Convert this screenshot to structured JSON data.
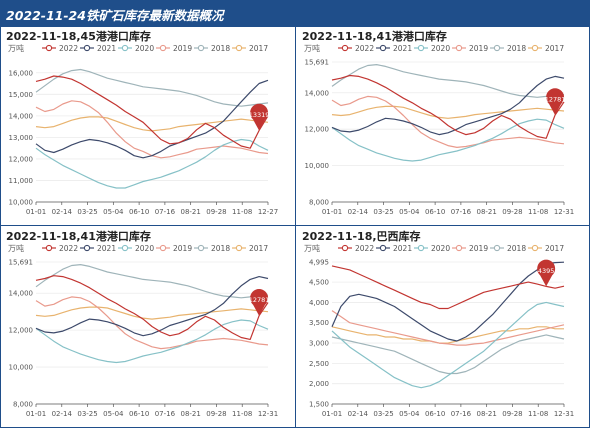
{
  "banner": {
    "title": "2022-11-24铁矿石库存最新数据概况"
  },
  "colors": {
    "2022": "#c23531",
    "2021": "#3d4a6b",
    "2020": "#86c1c7",
    "2019": "#e99a8c",
    "2018": "#9fb4b9",
    "2017": "#e8b36e",
    "banner": "#1f4e8a"
  },
  "chart_data": [
    {
      "type": "line",
      "title": "2022-11-18,45港港口库存",
      "ylabel": "万吨",
      "ylim": [
        10000,
        16500
      ],
      "yticks": [
        "10,000",
        "11,000",
        "12,000",
        "13,000",
        "14,000",
        "15,000",
        "16,000"
      ],
      "xticks": [
        "01-01",
        "02-14",
        "03-25",
        "05-04",
        "06-10",
        "07-16",
        "08-21",
        "09-28",
        "11-08",
        "12-27"
      ],
      "legend": [
        "2022",
        "2021",
        "2020",
        "2019",
        "2018",
        "2017"
      ],
      "grid": true,
      "marker": {
        "label": "13319",
        "x_index": 25,
        "series": "2022"
      },
      "series": [
        {
          "name": "2022",
          "values": [
            15600,
            15700,
            15850,
            15800,
            15700,
            15500,
            15250,
            15000,
            14750,
            14500,
            14200,
            13950,
            13700,
            13300,
            12900,
            12700,
            12750,
            12950,
            13350,
            13650,
            13450,
            13100,
            12850,
            12600,
            12500,
            13319,
            14000
          ]
        },
        {
          "name": "2021",
          "values": [
            12700,
            12400,
            12300,
            12450,
            12650,
            12800,
            12900,
            12850,
            12750,
            12600,
            12400,
            12150,
            12050,
            12150,
            12350,
            12600,
            12750,
            12900,
            13050,
            13200,
            13450,
            13750,
            14200,
            14650,
            15100,
            15500,
            15650
          ]
        },
        {
          "name": "2020",
          "values": [
            12500,
            12200,
            11950,
            11700,
            11500,
            11300,
            11100,
            10900,
            10750,
            10650,
            10650,
            10800,
            10950,
            11050,
            11150,
            11300,
            11450,
            11650,
            11850,
            12100,
            12400,
            12650,
            12800,
            12900,
            12850,
            12600,
            12400
          ]
        },
        {
          "name": "2019",
          "values": [
            14400,
            14200,
            14300,
            14550,
            14700,
            14650,
            14450,
            14150,
            13700,
            13200,
            12800,
            12500,
            12350,
            12150,
            12050,
            12100,
            12200,
            12300,
            12450,
            12500,
            12550,
            12600,
            12550,
            12500,
            12400,
            12300,
            12250
          ]
        },
        {
          "name": "2018",
          "values": [
            15100,
            15400,
            15700,
            15950,
            16100,
            16150,
            16050,
            15900,
            15750,
            15650,
            15550,
            15450,
            15350,
            15300,
            15250,
            15200,
            15150,
            15050,
            14950,
            14800,
            14650,
            14550,
            14500,
            14450,
            14500,
            14550,
            14600
          ]
        },
        {
          "name": "2017",
          "values": [
            13500,
            13450,
            13500,
            13650,
            13800,
            13900,
            13950,
            13950,
            13900,
            13750,
            13600,
            13450,
            13350,
            13300,
            13350,
            13400,
            13500,
            13550,
            13600,
            13650,
            13700,
            13750,
            13800,
            13850,
            13800,
            13750,
            13700
          ]
        }
      ]
    },
    {
      "type": "line",
      "title": "2022-11-18,41港港口库存",
      "ylabel": "万吨",
      "ylim": [
        8000,
        15691
      ],
      "yticks": [
        "8,000",
        "10,000",
        "12,000",
        "14,000",
        "15,691"
      ],
      "xticks": [
        "01-01",
        "02-14",
        "03-25",
        "05-04",
        "06-10",
        "07-16",
        "08-21",
        "09-28",
        "11-08",
        "12-31"
      ],
      "legend": [
        "2022",
        "2021",
        "2020",
        "2019",
        "2018",
        "2017"
      ],
      "grid": true,
      "marker": {
        "label": "12781",
        "x_index": 25,
        "series": "2022"
      },
      "series": [
        {
          "name": "2022",
          "values": [
            14700,
            14800,
            14950,
            14900,
            14750,
            14550,
            14300,
            14000,
            13700,
            13450,
            13150,
            12900,
            12600,
            12200,
            11900,
            11700,
            11800,
            12050,
            12450,
            12750,
            12550,
            12150,
            11850,
            11600,
            11500,
            12781,
            13500
          ]
        },
        {
          "name": "2021",
          "values": [
            12100,
            11900,
            11850,
            11950,
            12150,
            12400,
            12600,
            12550,
            12450,
            12300,
            12100,
            11850,
            11700,
            11800,
            12000,
            12250,
            12400,
            12550,
            12700,
            12850,
            13100,
            13450,
            13950,
            14400,
            14750,
            14900,
            14800
          ]
        },
        {
          "name": "2020",
          "values": [
            12100,
            11750,
            11400,
            11100,
            10900,
            10700,
            10550,
            10400,
            10300,
            10250,
            10300,
            10450,
            10600,
            10700,
            10800,
            10950,
            11100,
            11300,
            11500,
            11750,
            12050,
            12300,
            12450,
            12550,
            12500,
            12250,
            12050
          ]
        },
        {
          "name": "2019",
          "values": [
            13600,
            13300,
            13400,
            13650,
            13800,
            13750,
            13550,
            13200,
            12750,
            12250,
            11800,
            11500,
            11300,
            11100,
            11000,
            11050,
            11150,
            11250,
            11400,
            11450,
            11500,
            11550,
            11500,
            11450,
            11350,
            11250,
            11200
          ]
        },
        {
          "name": "2018",
          "values": [
            14350,
            14700,
            15000,
            15300,
            15500,
            15550,
            15450,
            15300,
            15150,
            15050,
            14950,
            14850,
            14750,
            14700,
            14650,
            14600,
            14500,
            14400,
            14250,
            14100,
            13950,
            13850,
            13800,
            13750,
            13800,
            13850,
            13900
          ]
        },
        {
          "name": "2017",
          "values": [
            12800,
            12750,
            12800,
            12950,
            13100,
            13200,
            13250,
            13250,
            13200,
            13050,
            12900,
            12750,
            12650,
            12600,
            12650,
            12700,
            12800,
            12850,
            12900,
            12950,
            13000,
            13050,
            13100,
            13150,
            13100,
            13050,
            13000
          ]
        }
      ]
    },
    {
      "type": "line",
      "title": "2022-11-18,41港港口库存",
      "ylabel": "万吨",
      "ylim": [
        8000,
        15691
      ],
      "yticks": [
        "8,000",
        "10,000",
        "12,000",
        "14,000",
        "15,691"
      ],
      "xticks": [
        "01-01",
        "02-14",
        "03-25",
        "05-04",
        "06-10",
        "07-16",
        "08-21",
        "09-28",
        "11-08",
        "12-31"
      ],
      "legend": [
        "2022",
        "2021",
        "2020",
        "2019",
        "2018",
        "2017"
      ],
      "grid": true,
      "marker": {
        "label": "12781",
        "x_index": 25,
        "series": "2022"
      },
      "series": [
        {
          "name": "2022",
          "values": [
            14700,
            14800,
            14950,
            14900,
            14750,
            14550,
            14300,
            14000,
            13700,
            13450,
            13150,
            12900,
            12600,
            12200,
            11900,
            11700,
            11800,
            12050,
            12450,
            12750,
            12550,
            12150,
            11850,
            11600,
            11500,
            12781,
            13500
          ]
        },
        {
          "name": "2021",
          "values": [
            12100,
            11900,
            11850,
            11950,
            12150,
            12400,
            12600,
            12550,
            12450,
            12300,
            12100,
            11850,
            11700,
            11800,
            12000,
            12250,
            12400,
            12550,
            12700,
            12850,
            13100,
            13450,
            13950,
            14400,
            14750,
            14900,
            14800
          ]
        },
        {
          "name": "2020",
          "values": [
            12100,
            11750,
            11400,
            11100,
            10900,
            10700,
            10550,
            10400,
            10300,
            10250,
            10300,
            10450,
            10600,
            10700,
            10800,
            10950,
            11100,
            11300,
            11500,
            11750,
            12050,
            12300,
            12450,
            12550,
            12500,
            12250,
            12050
          ]
        },
        {
          "name": "2019",
          "values": [
            13600,
            13300,
            13400,
            13650,
            13800,
            13750,
            13550,
            13200,
            12750,
            12250,
            11800,
            11500,
            11300,
            11100,
            11000,
            11050,
            11150,
            11250,
            11400,
            11450,
            11500,
            11550,
            11500,
            11450,
            11350,
            11250,
            11200
          ]
        },
        {
          "name": "2018",
          "values": [
            14350,
            14700,
            15000,
            15300,
            15500,
            15550,
            15450,
            15300,
            15150,
            15050,
            14950,
            14850,
            14750,
            14700,
            14650,
            14600,
            14500,
            14400,
            14250,
            14100,
            13950,
            13850,
            13800,
            13750,
            13800,
            13850,
            13900
          ]
        },
        {
          "name": "2017",
          "values": [
            12800,
            12750,
            12800,
            12950,
            13100,
            13200,
            13250,
            13250,
            13200,
            13050,
            12900,
            12750,
            12650,
            12600,
            12650,
            12700,
            12800,
            12850,
            12900,
            12950,
            13000,
            13050,
            13100,
            13150,
            13100,
            13050,
            13000
          ]
        }
      ]
    },
    {
      "type": "line",
      "title": "2022-11-18,巴西库存",
      "ylabel": "万吨",
      "ylim": [
        1500,
        4995
      ],
      "yticks": [
        "1,500",
        "2,000",
        "2,500",
        "3,000",
        "3,500",
        "4,000",
        "4,500",
        "4,995"
      ],
      "xticks": [
        "01-01",
        "02-14",
        "03-25",
        "05-04",
        "06-10",
        "07-16",
        "08-21",
        "09-28",
        "11-08",
        "12-31"
      ],
      "legend": [
        "2022",
        "2021",
        "2020",
        "2019",
        "2018",
        "2017"
      ],
      "grid": true,
      "marker": {
        "label": "4395",
        "x_index": 24,
        "series": "2022"
      },
      "series": [
        {
          "name": "2022",
          "values": [
            4900,
            4850,
            4800,
            4700,
            4600,
            4500,
            4400,
            4300,
            4200,
            4100,
            4000,
            3950,
            3850,
            3850,
            3950,
            4050,
            4150,
            4250,
            4300,
            4350,
            4400,
            4450,
            4500,
            4450,
            4395,
            4350,
            4400
          ]
        },
        {
          "name": "2021",
          "values": [
            3400,
            3900,
            4150,
            4200,
            4150,
            4100,
            4000,
            3900,
            3750,
            3600,
            3450,
            3300,
            3200,
            3100,
            3050,
            3150,
            3300,
            3500,
            3700,
            3950,
            4200,
            4450,
            4650,
            4800,
            4950,
            4980,
            4990
          ]
        },
        {
          "name": "2020",
          "values": [
            3300,
            3100,
            2900,
            2750,
            2600,
            2450,
            2300,
            2150,
            2050,
            1950,
            1900,
            1950,
            2050,
            2200,
            2350,
            2500,
            2650,
            2800,
            3000,
            3200,
            3400,
            3600,
            3800,
            3950,
            4000,
            3950,
            3900
          ]
        },
        {
          "name": "2019",
          "values": [
            3800,
            3650,
            3500,
            3450,
            3400,
            3350,
            3300,
            3250,
            3200,
            3150,
            3100,
            3050,
            3000,
            2980,
            2950,
            2950,
            2980,
            3000,
            3050,
            3100,
            3150,
            3200,
            3250,
            3300,
            3350,
            3400,
            3450
          ]
        },
        {
          "name": "2018",
          "values": [
            3150,
            3100,
            3050,
            3000,
            2950,
            2900,
            2850,
            2800,
            2700,
            2600,
            2500,
            2400,
            2300,
            2250,
            2250,
            2300,
            2400,
            2550,
            2700,
            2850,
            2950,
            3050,
            3100,
            3150,
            3200,
            3150,
            3100
          ]
        },
        {
          "name": "2017",
          "values": [
            3400,
            3350,
            3300,
            3250,
            3200,
            3200,
            3150,
            3150,
            3100,
            3100,
            3050,
            3050,
            3000,
            3000,
            3050,
            3100,
            3150,
            3200,
            3250,
            3300,
            3300,
            3350,
            3350,
            3400,
            3400,
            3350,
            3350
          ]
        }
      ]
    }
  ]
}
